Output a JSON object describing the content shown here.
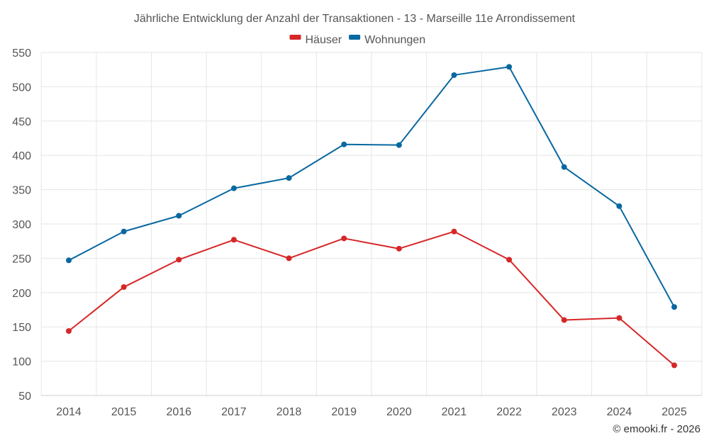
{
  "chart_data": {
    "type": "line",
    "title": "Jährliche Entwicklung der Anzahl der Transaktionen - 13 - Marseille 11e Arrondissement",
    "xlabel": "",
    "ylabel": "",
    "categories": [
      "2014",
      "2015",
      "2016",
      "2017",
      "2018",
      "2019",
      "2020",
      "2021",
      "2022",
      "2023",
      "2024",
      "2025"
    ],
    "ylim": [
      50,
      550
    ],
    "yticks": [
      50,
      100,
      150,
      200,
      250,
      300,
      350,
      400,
      450,
      500,
      550
    ],
    "grid": true,
    "legend_position": "top-center",
    "series": [
      {
        "name": "Häuser",
        "color": "#d62728",
        "values": [
          144,
          208,
          248,
          277,
          250,
          279,
          264,
          289,
          248,
          160,
          163,
          94
        ]
      },
      {
        "name": "Wohnungen",
        "color": "#0868a0",
        "values": [
          247,
          289,
          312,
          352,
          367,
          416,
          415,
          517,
          529,
          383,
          326,
          179
        ]
      }
    ],
    "credit": "© emooki.fr - 2026"
  }
}
